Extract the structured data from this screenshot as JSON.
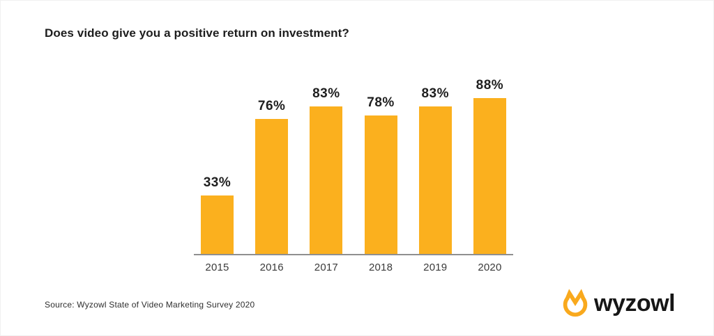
{
  "page": {
    "title": "Does video give you a positive return on investment?"
  },
  "chart_data": {
    "type": "bar",
    "categories": [
      "2015",
      "2016",
      "2017",
      "2018",
      "2019",
      "2020"
    ],
    "values": [
      33,
      76,
      83,
      78,
      83,
      88
    ],
    "value_labels": [
      "33%",
      "76%",
      "83%",
      "78%",
      "83%",
      "88%"
    ],
    "title": "Does video give you a positive return on investment?",
    "xlabel": "",
    "ylabel": "",
    "ylim": [
      0,
      100
    ],
    "grid": false,
    "legend": "none",
    "bar_color": "#FBB01E",
    "axis_line_color": "#8F8F8F"
  },
  "footer": {
    "source": "Source: Wyzowl State of Video Marketing Survey 2020",
    "logo_text": "wyzowl",
    "logo_icon": "wyzowl-crown-ring-icon",
    "logo_color": "#F9A91D"
  }
}
